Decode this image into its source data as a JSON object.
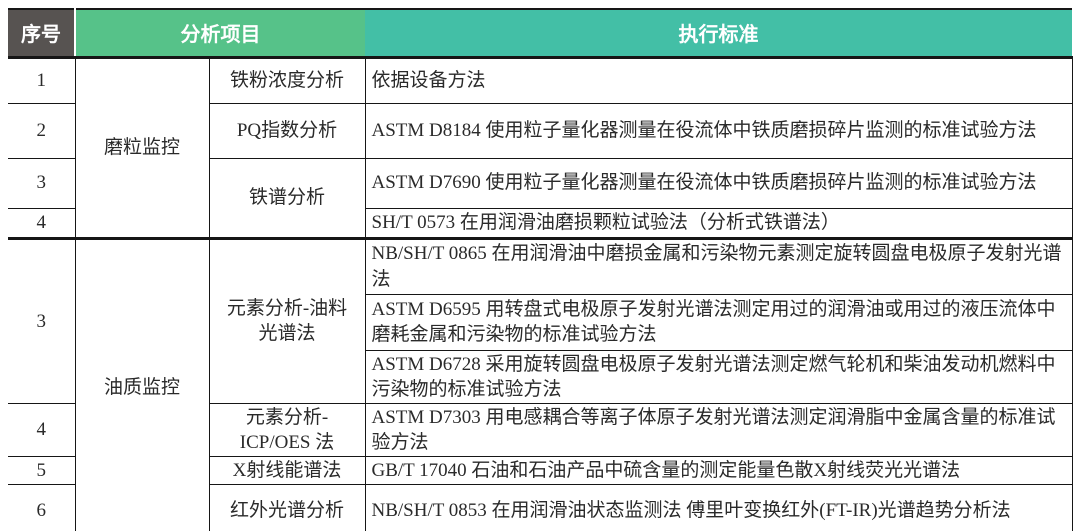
{
  "table": {
    "header": {
      "seq": "序号",
      "item": "分析项目",
      "standard": "执行标准"
    },
    "colors": {
      "seq_header_bg": "#575351",
      "item_header_bg": "#56C289",
      "standard_header_bg": "#43BFA6",
      "header_text": "#ffffff",
      "body_text": "#2a2a2a",
      "border": "#161616"
    },
    "group1": {
      "name": "磨粒监控",
      "r1": {
        "seq": "1",
        "item": "铁粉浓度分析",
        "std": "依据设备方法"
      },
      "r2": {
        "seq": "2",
        "item": "PQ指数分析",
        "std": "ASTM D8184 使用粒子量化器测量在役流体中铁质磨损碎片监测的标准试验方法"
      },
      "r3": {
        "seq": "3",
        "item": "铁谱分析",
        "std": "ASTM D7690 使用粒子量化器测量在役流体中铁质磨损碎片监测的标准试验方法"
      },
      "r4": {
        "seq": "4",
        "std": "SH/T 0573 在用润滑油磨损颗粒试验法（分析式铁谱法）"
      }
    },
    "group2": {
      "name": "油质监控",
      "r5": {
        "seq": "3",
        "item": "元素分析-油料\n光谱法",
        "std": "NB/SH/T 0865 在用润滑油中磨损金属和污染物元素测定旋转圆盘电极原子发射光谱法"
      },
      "r6": {
        "std": "ASTM D6595 用转盘式电极原子发射光谱法测定用过的润滑油或用过的液压流体中磨耗金属和污染物的标准试验方法"
      },
      "r7": {
        "std": "ASTM D6728 采用旋转圆盘电极原子发射光谱法测定燃气轮机和柴油发动机燃料中污染物的标准试验方法"
      },
      "r8": {
        "seq": "4",
        "item": "元素分析-\nICP/OES 法",
        "std": "ASTM D7303 用电感耦合等离子体原子发射光谱法测定润滑脂中金属含量的标准试验方法"
      },
      "r9": {
        "seq": "5",
        "item": "X射线能谱法",
        "std": "GB/T 17040 石油和石油产品中硫含量的测定能量色散X射线荧光光谱法"
      },
      "r10": {
        "seq": "6",
        "item": "红外光谱分析",
        "std": "NB/SH/T 0853 在用润滑油状态监测法 傅里叶变换红外(FT-IR)光谱趋势分析法"
      }
    }
  }
}
